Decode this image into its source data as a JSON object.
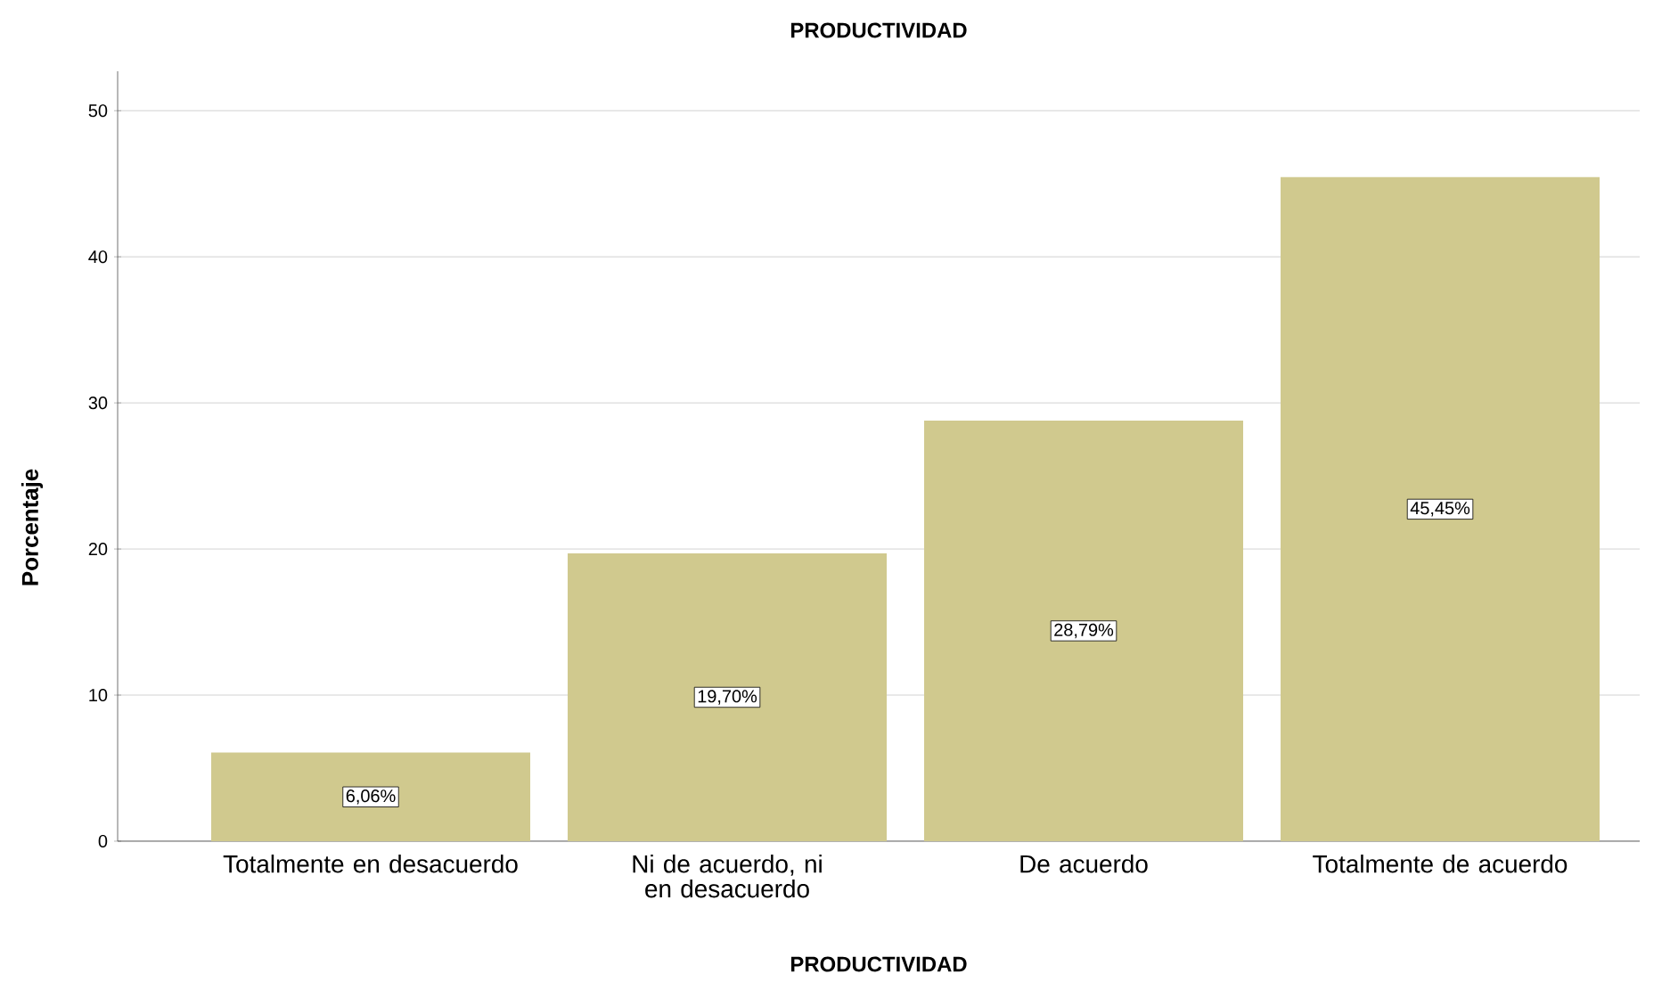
{
  "chart_data": {
    "type": "bar",
    "title": "PRODUCTIVIDAD",
    "xlabel": "PRODUCTIVIDAD",
    "ylabel": "Porcentaje",
    "categories": [
      "Totalmente en desacuerdo",
      "Ni de acuerdo, ni en desacuerdo",
      "De acuerdo",
      "Totalmente de acuerdo"
    ],
    "values": [
      6.06,
      19.7,
      28.79,
      45.45
    ],
    "value_labels": [
      "6,06%",
      "19,70%",
      "28,79%",
      "45,45%"
    ],
    "color": "#d0c98e",
    "ylim": [
      0,
      52.7
    ],
    "yticks": [
      0,
      10,
      20,
      30,
      40,
      50
    ],
    "grid": "y"
  }
}
